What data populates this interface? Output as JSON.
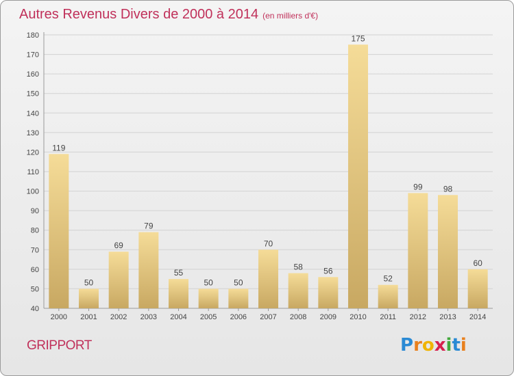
{
  "header": {
    "title": "Autres Revenus Divers de 2000 à 2014",
    "subtitle": "(en milliers d'€)"
  },
  "footer": {
    "location": "GRIPPORT",
    "logo_text": "Proxiti",
    "logo_colors": [
      "#2a8ad4",
      "#e8801e",
      "#f0b400",
      "#d6204e",
      "#42a83c",
      "#2a8ad4",
      "#e8801e"
    ]
  },
  "chart_data": {
    "type": "bar",
    "categories": [
      "2000",
      "2001",
      "2002",
      "2003",
      "2004",
      "2005",
      "2006",
      "2007",
      "2008",
      "2009",
      "2010",
      "2011",
      "2012",
      "2013",
      "2014"
    ],
    "values": [
      119,
      50,
      69,
      79,
      55,
      50,
      50,
      70,
      58,
      56,
      175,
      52,
      99,
      98,
      60
    ],
    "ylim": [
      40,
      180
    ],
    "yticks": [
      40,
      50,
      60,
      70,
      80,
      90,
      100,
      110,
      120,
      130,
      140,
      150,
      160,
      170,
      180
    ],
    "grid": true,
    "bar_color_light": "#f5dc98",
    "bar_color_dark": "#c8a862"
  }
}
